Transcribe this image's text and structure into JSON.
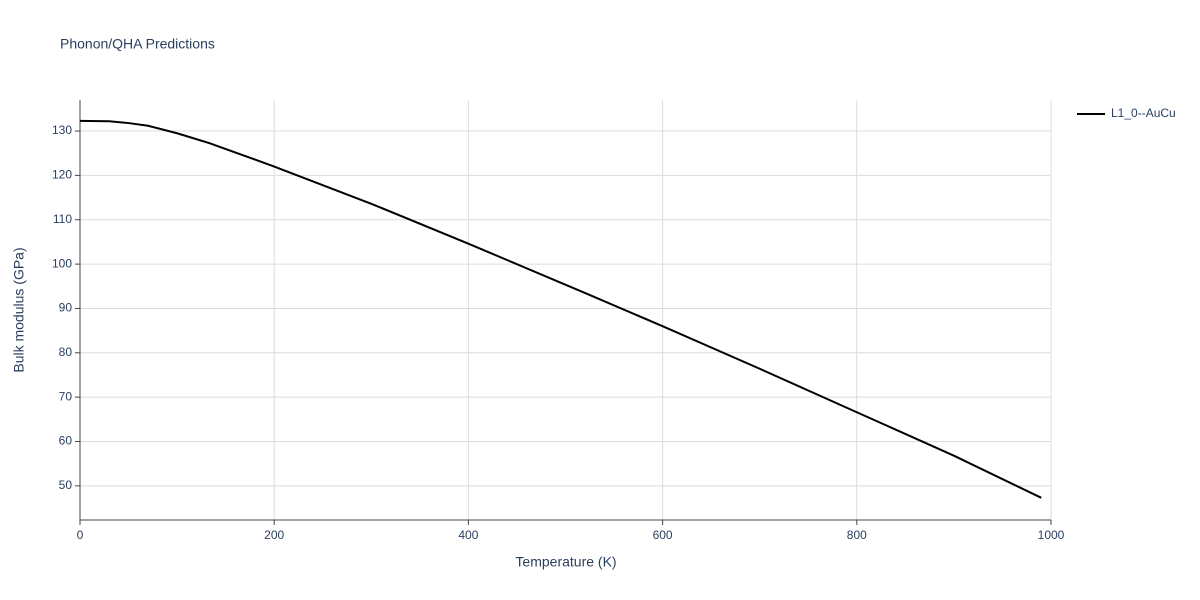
{
  "chart_data": {
    "type": "line",
    "title": "Phonon/QHA Predictions",
    "x_label": "Temperature (K)",
    "y_label": "Bulk modulus (GPa)",
    "x": [
      0,
      30,
      50,
      70,
      100,
      133,
      200,
      300,
      400,
      520,
      600,
      700,
      800,
      900,
      990
    ],
    "series": [
      {
        "name": "L1_0--AuCu",
        "color": "#000000",
        "values": [
          132.3,
          132.2,
          131.8,
          131.2,
          129.5,
          127.3,
          122,
          113.6,
          104.6,
          93.5,
          86,
          76.4,
          66.6,
          56.8,
          47.3
        ]
      }
    ],
    "xlim": [
      0,
      1000
    ],
    "xticks": [
      0,
      200,
      400,
      600,
      800,
      1000
    ],
    "ylim": [
      42.3,
      137
    ],
    "yticks": [
      50,
      60,
      70,
      80,
      90,
      100,
      110,
      120,
      130
    ],
    "grid": true,
    "legend": "top-right"
  }
}
